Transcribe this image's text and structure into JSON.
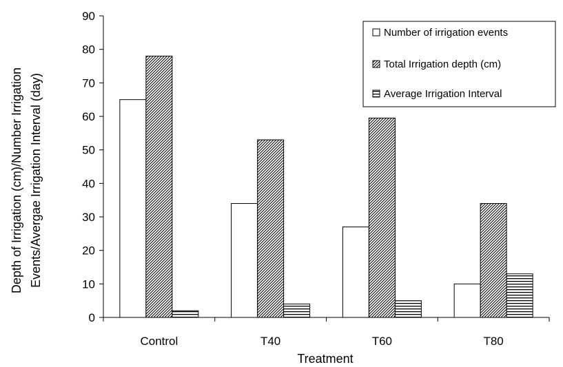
{
  "chart_data": {
    "type": "bar",
    "title": "",
    "xlabel": "Treatment",
    "ylabel_lines": [
      "Depth of Irrigation (cm)/Number Irrigation",
      "Events/Avergae Irrigation Interval (day)"
    ],
    "categories": [
      "Control",
      "T40",
      "T60",
      "T80"
    ],
    "series": [
      {
        "name": "Number of irrigation events",
        "values": [
          65,
          34,
          27,
          10
        ],
        "pattern": "empty"
      },
      {
        "name": "Total Irrigation depth (cm)",
        "values": [
          78,
          53,
          59.5,
          34
        ],
        "pattern": "diagonal"
      },
      {
        "name": "Average Irrigation Interval",
        "values": [
          2,
          4,
          5,
          13
        ],
        "pattern": "horizontal"
      }
    ],
    "ylim": [
      0,
      90
    ],
    "yticks": [
      "0",
      "10",
      "20",
      "30",
      "40",
      "50",
      "60",
      "70",
      "80",
      "90"
    ],
    "grid": false,
    "legend_position": "top-right"
  }
}
